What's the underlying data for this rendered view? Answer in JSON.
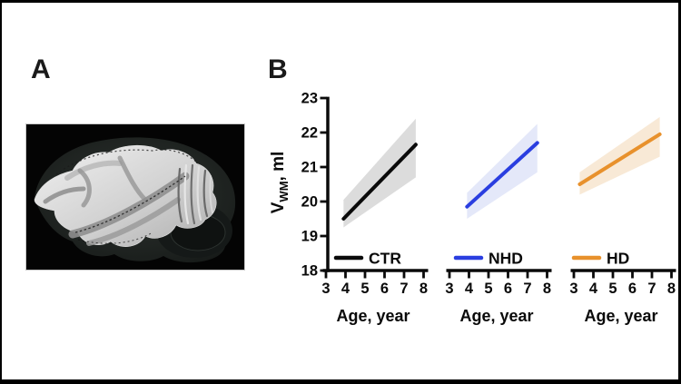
{
  "figure": {
    "panelA": {
      "label": "A",
      "image": "brain-white-matter-3d-render"
    },
    "panelB": {
      "label": "B",
      "ylabel": {
        "prefix": "V",
        "subscript": "WM",
        "suffix": ", ml"
      }
    }
  },
  "chart_data": [
    {
      "type": "line",
      "series": "CTR",
      "legend": "CTR",
      "xlabel": "Age, year",
      "xticks": [
        3,
        4,
        5,
        6,
        7,
        8
      ],
      "yticks": [
        18,
        19,
        20,
        21,
        22,
        23
      ],
      "xlim": [
        3,
        8
      ],
      "ylim": [
        18,
        23
      ],
      "show_y_axis": true,
      "legend_position": "inside-bottom-left",
      "grid": false,
      "line_color": "#0a0a0a",
      "band_color": "#dcdcdc",
      "line": {
        "x": [
          3.9,
          7.6
        ],
        "y": [
          19.5,
          21.65
        ]
      },
      "band": {
        "x": [
          3.9,
          7.6
        ],
        "lower": [
          19.25,
          20.7
        ],
        "upper": [
          20.05,
          22.4
        ]
      }
    },
    {
      "type": "line",
      "series": "NHD",
      "legend": "NHD",
      "xlabel": "Age, year",
      "xticks": [
        3,
        4,
        5,
        6,
        7,
        8
      ],
      "yticks": [
        18,
        19,
        20,
        21,
        22,
        23
      ],
      "xlim": [
        3,
        8
      ],
      "ylim": [
        18,
        23
      ],
      "show_y_axis": false,
      "legend_position": "inside-bottom-left",
      "grid": false,
      "line_color": "#2a3ee0",
      "band_color": "#e4e8f9",
      "line": {
        "x": [
          3.9,
          7.5
        ],
        "y": [
          19.85,
          21.7
        ]
      },
      "band": {
        "x": [
          3.9,
          7.5
        ],
        "lower": [
          19.5,
          20.85
        ],
        "upper": [
          20.25,
          22.25
        ]
      }
    },
    {
      "type": "line",
      "series": "HD",
      "legend": "HD",
      "xlabel": "Age, year",
      "xticks": [
        3,
        4,
        5,
        6,
        7,
        8
      ],
      "yticks": [
        18,
        19,
        20,
        21,
        22,
        23
      ],
      "xlim": [
        3,
        8
      ],
      "ylim": [
        18,
        23
      ],
      "show_y_axis": false,
      "legend_position": "inside-bottom-left",
      "grid": false,
      "line_color": "#e8912c",
      "band_color": "#f8e9d6",
      "line": {
        "x": [
          3.3,
          7.4
        ],
        "y": [
          20.5,
          21.95
        ]
      },
      "band": {
        "x": [
          3.3,
          7.4
        ],
        "lower": [
          20.2,
          21.3
        ],
        "upper": [
          20.85,
          22.45
        ]
      }
    }
  ]
}
